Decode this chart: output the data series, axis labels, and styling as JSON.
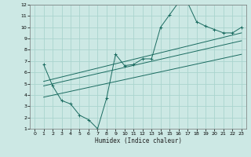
{
  "xlabel": "Humidex (Indice chaleur)",
  "bg_color": "#cce8e4",
  "grid_color": "#aad4ce",
  "line_color": "#1a6b60",
  "xlim": [
    -0.5,
    23.5
  ],
  "ylim": [
    1,
    12
  ],
  "xticks": [
    0,
    1,
    2,
    3,
    4,
    5,
    6,
    7,
    8,
    9,
    10,
    11,
    12,
    13,
    14,
    15,
    16,
    17,
    18,
    19,
    20,
    21,
    22,
    23
  ],
  "yticks": [
    1,
    2,
    3,
    4,
    5,
    6,
    7,
    8,
    9,
    10,
    11,
    12
  ],
  "curve1_x": [
    1,
    2,
    3,
    4,
    5,
    6,
    7,
    8,
    9,
    10,
    11,
    12,
    13,
    14,
    15,
    16,
    17,
    18,
    19,
    20,
    21,
    22,
    23
  ],
  "curve1_y": [
    6.7,
    4.8,
    3.5,
    3.2,
    2.2,
    1.8,
    1.0,
    3.7,
    7.6,
    6.6,
    6.7,
    7.2,
    7.2,
    10.0,
    11.1,
    12.2,
    12.2,
    10.5,
    10.1,
    9.8,
    9.5,
    9.5,
    10.0
  ],
  "curve2_x": [
    1,
    23
  ],
  "curve2_y": [
    5.2,
    9.5
  ],
  "curve3_x": [
    1,
    23
  ],
  "curve3_y": [
    4.8,
    8.8
  ],
  "curve4_x": [
    1,
    23
  ],
  "curve4_y": [
    3.8,
    7.6
  ]
}
